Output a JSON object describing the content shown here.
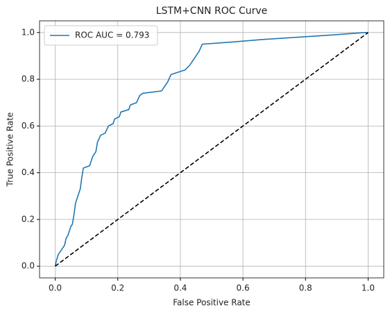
{
  "chart_data": {
    "type": "line",
    "title": "LSTM+CNN ROC Curve",
    "xlabel": "False Positive Rate",
    "ylabel": "True Positive Rate",
    "xlim": [
      -0.05,
      1.05
    ],
    "ylim": [
      -0.05,
      1.05
    ],
    "xticks": [
      {
        "value": 0,
        "label": "0.0"
      },
      0.2,
      0.4,
      0.6,
      0.8,
      {
        "value": 1,
        "label": "1.0"
      }
    ],
    "yticks": [
      {
        "value": 0,
        "label": "0.0"
      },
      0.2,
      0.4,
      0.6,
      0.8,
      {
        "value": 1,
        "label": "1.0"
      }
    ],
    "grid": true,
    "legend": "upper left",
    "series": [
      {
        "name": "ROC AUC = 0.793",
        "color": "#1f77b4",
        "linestyle": "solid",
        "x": [
          0,
          0.005,
          0.01,
          0.02,
          0.03,
          0.035,
          0.04,
          0.045,
          0.05,
          0.055,
          0.06,
          0.065,
          0.07,
          0.075,
          0.08,
          0.085,
          0.09,
          0.11,
          0.115,
          0.12,
          0.13,
          0.135,
          0.145,
          0.16,
          0.17,
          0.185,
          0.19,
          0.205,
          0.21,
          0.235,
          0.24,
          0.26,
          0.27,
          0.28,
          0.34,
          0.35,
          0.36,
          0.37,
          0.415,
          0.43,
          0.44,
          0.45,
          0.46,
          0.47,
          0.57,
          0.66,
          0.89,
          0.99,
          1.0
        ],
        "values": [
          0,
          0.03,
          0.05,
          0.07,
          0.09,
          0.12,
          0.13,
          0.15,
          0.17,
          0.18,
          0.22,
          0.27,
          0.29,
          0.31,
          0.33,
          0.38,
          0.42,
          0.43,
          0.45,
          0.47,
          0.49,
          0.53,
          0.56,
          0.57,
          0.6,
          0.61,
          0.63,
          0.64,
          0.66,
          0.67,
          0.69,
          0.7,
          0.73,
          0.74,
          0.75,
          0.77,
          0.79,
          0.82,
          0.84,
          0.86,
          0.88,
          0.9,
          0.92,
          0.95,
          0.96,
          0.97,
          0.99,
          1.0,
          1.0
        ]
      },
      {
        "color": "#000000",
        "linestyle": "dashed",
        "x": [
          0,
          1
        ],
        "values": [
          0,
          1
        ]
      }
    ]
  }
}
